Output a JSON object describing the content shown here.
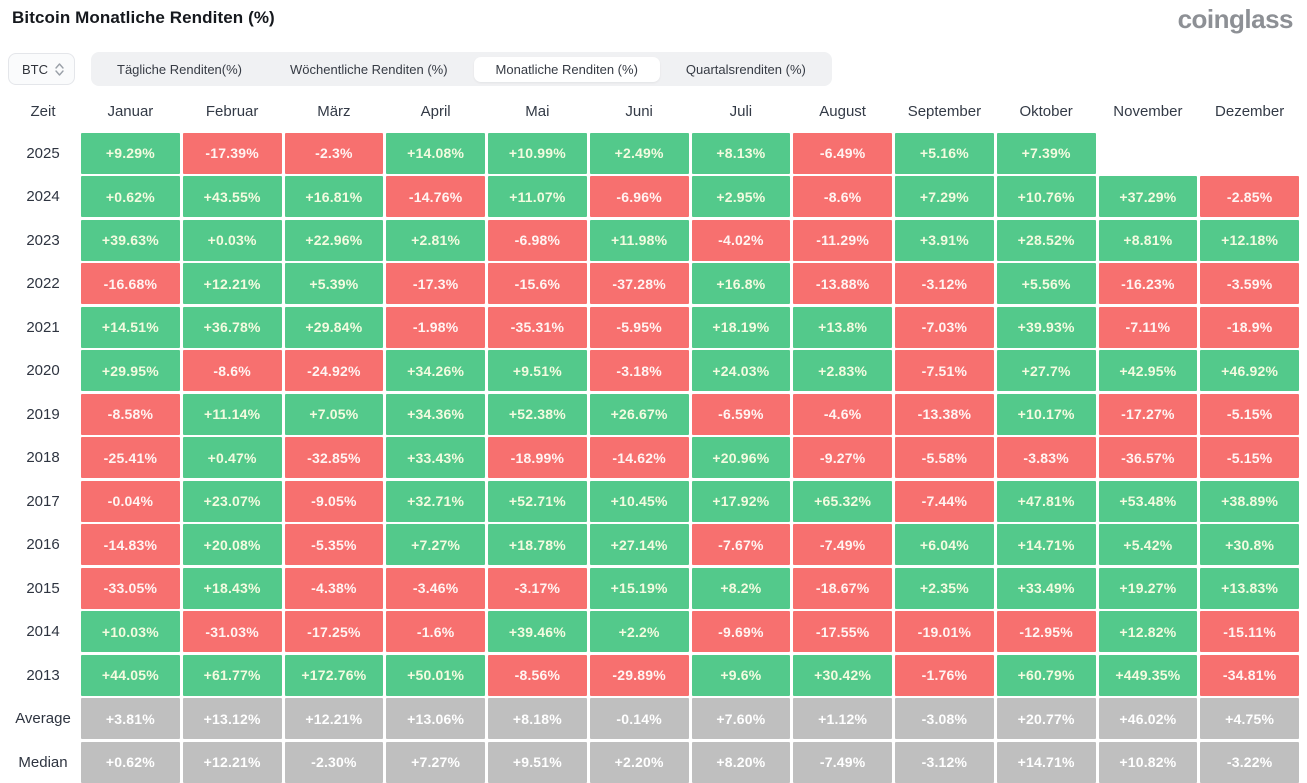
{
  "header": {
    "title": "Bitcoin Monatliche Renditen (%)",
    "logo": "coinglass"
  },
  "controls": {
    "symbol_select": {
      "value": "BTC"
    },
    "tabs": [
      {
        "label": "Tägliche Renditen(%)",
        "active": false
      },
      {
        "label": "Wöchentliche Renditen (%)",
        "active": false
      },
      {
        "label": "Monatliche Renditen (%)",
        "active": true
      },
      {
        "label": "Quartalsrenditen (%)",
        "active": false
      }
    ]
  },
  "chart_data": {
    "type": "heatmap",
    "title": "Bitcoin Monatliche Renditen (%)",
    "columns": [
      "Zeit",
      "Januar",
      "Februar",
      "März",
      "April",
      "Mai",
      "Juni",
      "Juli",
      "August",
      "September",
      "Oktober",
      "November",
      "Dezember"
    ],
    "rows": [
      {
        "label": "2025",
        "type": "year",
        "values": [
          "+9.29%",
          "-17.39%",
          "-2.3%",
          "+14.08%",
          "+10.99%",
          "+2.49%",
          "+8.13%",
          "-6.49%",
          "+5.16%",
          "+7.39%",
          "",
          ""
        ]
      },
      {
        "label": "2024",
        "type": "year",
        "values": [
          "+0.62%",
          "+43.55%",
          "+16.81%",
          "-14.76%",
          "+11.07%",
          "-6.96%",
          "+2.95%",
          "-8.6%",
          "+7.29%",
          "+10.76%",
          "+37.29%",
          "-2.85%"
        ]
      },
      {
        "label": "2023",
        "type": "year",
        "values": [
          "+39.63%",
          "+0.03%",
          "+22.96%",
          "+2.81%",
          "-6.98%",
          "+11.98%",
          "-4.02%",
          "-11.29%",
          "+3.91%",
          "+28.52%",
          "+8.81%",
          "+12.18%"
        ]
      },
      {
        "label": "2022",
        "type": "year",
        "values": [
          "-16.68%",
          "+12.21%",
          "+5.39%",
          "-17.3%",
          "-15.6%",
          "-37.28%",
          "+16.8%",
          "-13.88%",
          "-3.12%",
          "+5.56%",
          "-16.23%",
          "-3.59%"
        ]
      },
      {
        "label": "2021",
        "type": "year",
        "values": [
          "+14.51%",
          "+36.78%",
          "+29.84%",
          "-1.98%",
          "-35.31%",
          "-5.95%",
          "+18.19%",
          "+13.8%",
          "-7.03%",
          "+39.93%",
          "-7.11%",
          "-18.9%"
        ]
      },
      {
        "label": "2020",
        "type": "year",
        "values": [
          "+29.95%",
          "-8.6%",
          "-24.92%",
          "+34.26%",
          "+9.51%",
          "-3.18%",
          "+24.03%",
          "+2.83%",
          "-7.51%",
          "+27.7%",
          "+42.95%",
          "+46.92%"
        ]
      },
      {
        "label": "2019",
        "type": "year",
        "values": [
          "-8.58%",
          "+11.14%",
          "+7.05%",
          "+34.36%",
          "+52.38%",
          "+26.67%",
          "-6.59%",
          "-4.6%",
          "-13.38%",
          "+10.17%",
          "-17.27%",
          "-5.15%"
        ]
      },
      {
        "label": "2018",
        "type": "year",
        "values": [
          "-25.41%",
          "+0.47%",
          "-32.85%",
          "+33.43%",
          "-18.99%",
          "-14.62%",
          "+20.96%",
          "-9.27%",
          "-5.58%",
          "-3.83%",
          "-36.57%",
          "-5.15%"
        ]
      },
      {
        "label": "2017",
        "type": "year",
        "values": [
          "-0.04%",
          "+23.07%",
          "-9.05%",
          "+32.71%",
          "+52.71%",
          "+10.45%",
          "+17.92%",
          "+65.32%",
          "-7.44%",
          "+47.81%",
          "+53.48%",
          "+38.89%"
        ]
      },
      {
        "label": "2016",
        "type": "year",
        "values": [
          "-14.83%",
          "+20.08%",
          "-5.35%",
          "+7.27%",
          "+18.78%",
          "+27.14%",
          "-7.67%",
          "-7.49%",
          "+6.04%",
          "+14.71%",
          "+5.42%",
          "+30.8%"
        ]
      },
      {
        "label": "2015",
        "type": "year",
        "values": [
          "-33.05%",
          "+18.43%",
          "-4.38%",
          "-3.46%",
          "-3.17%",
          "+15.19%",
          "+8.2%",
          "-18.67%",
          "+2.35%",
          "+33.49%",
          "+19.27%",
          "+13.83%"
        ]
      },
      {
        "label": "2014",
        "type": "year",
        "values": [
          "+10.03%",
          "-31.03%",
          "-17.25%",
          "-1.6%",
          "+39.46%",
          "+2.2%",
          "-9.69%",
          "-17.55%",
          "-19.01%",
          "-12.95%",
          "+12.82%",
          "-15.11%"
        ]
      },
      {
        "label": "2013",
        "type": "year",
        "values": [
          "+44.05%",
          "+61.77%",
          "+172.76%",
          "+50.01%",
          "-8.56%",
          "-29.89%",
          "+9.6%",
          "+30.42%",
          "-1.76%",
          "+60.79%",
          "+449.35%",
          "-34.81%"
        ]
      },
      {
        "label": "Average",
        "type": "stat",
        "values": [
          "+3.81%",
          "+13.12%",
          "+12.21%",
          "+13.06%",
          "+8.18%",
          "-0.14%",
          "+7.60%",
          "+1.12%",
          "-3.08%",
          "+20.77%",
          "+46.02%",
          "+4.75%"
        ]
      },
      {
        "label": "Median",
        "type": "stat",
        "values": [
          "+0.62%",
          "+12.21%",
          "-2.30%",
          "+7.27%",
          "+9.51%",
          "+2.20%",
          "+8.20%",
          "-7.49%",
          "-3.12%",
          "+14.71%",
          "+10.82%",
          "-3.22%"
        ]
      }
    ],
    "colors": {
      "positive": "#53c98b",
      "negative": "#f7706f",
      "stat": "#bfbfbf",
      "title_text": "#15181d",
      "logo_text": "#8d9095"
    }
  }
}
